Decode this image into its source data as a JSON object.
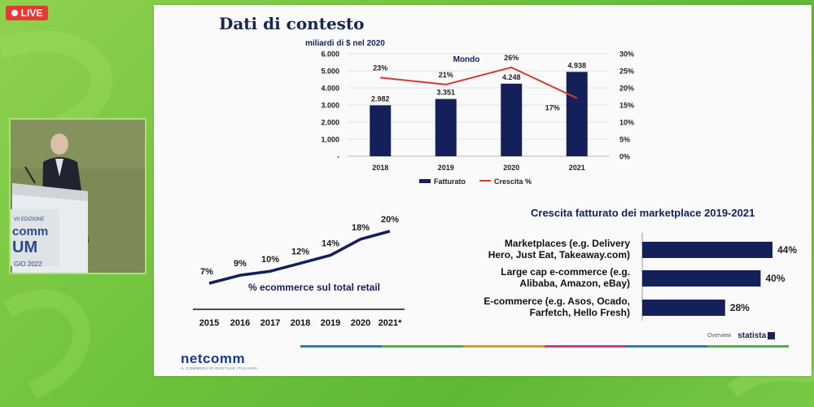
{
  "live": {
    "label": "LIVE"
  },
  "stage_sign": {
    "lines": [
      "VII EDIZIONE",
      "comm",
      "UM",
      "GIO 2022"
    ]
  },
  "slide": {
    "title": "Dati di contesto",
    "source_overview": "Overview",
    "source_brand": "statista",
    "logo_name": "netcomm",
    "logo_sub": "IL COMMERCIO DIGITALE ITALIANO"
  },
  "colors": {
    "navy": "#14205a",
    "red": "#d33c2f",
    "slide_bg": "#fafafa",
    "green_bg": "#6cc13a"
  },
  "chart_data": [
    {
      "type": "bar",
      "title": "Mondo",
      "unit_label": "miliardi di $ nel 2020",
      "categories": [
        "2018",
        "2019",
        "2020",
        "2021"
      ],
      "series": [
        {
          "name": "Fatturato",
          "type": "bar",
          "axis": "left",
          "values": [
            2982,
            3351,
            4248,
            4938
          ],
          "labels": [
            "2.982",
            "3.351",
            "4.248",
            "4.938"
          ]
        },
        {
          "name": "Crescita %",
          "type": "line",
          "axis": "right",
          "values": [
            23,
            21,
            26,
            17
          ],
          "labels": [
            "23%",
            "21%",
            "26%",
            "17%"
          ]
        }
      ],
      "y_left": {
        "min": 0,
        "max": 6000,
        "ticks": [
          "-",
          "1.000",
          "2.000",
          "3.000",
          "4.000",
          "5.000",
          "6.000"
        ]
      },
      "y_right": {
        "min": 0,
        "max": 30,
        "ticks": [
          "0%",
          "5%",
          "10%",
          "15%",
          "20%",
          "25%",
          "30%"
        ]
      },
      "grid": true,
      "legend": "bottom"
    },
    {
      "type": "line",
      "title": "% ecommerce sul total retail",
      "x": [
        "2015",
        "2016",
        "2017",
        "2018",
        "2019",
        "2020",
        "2021*"
      ],
      "values": [
        7,
        9,
        10,
        12,
        14,
        18,
        20
      ],
      "labels": [
        "7%",
        "9%",
        "10%",
        "12%",
        "14%",
        "18%",
        "20%"
      ]
    },
    {
      "type": "bar",
      "orientation": "horizontal",
      "title": "Crescita fatturato dei marketplace 2019-2021",
      "categories": [
        [
          "Marketplaces (e.g. Delivery",
          "Hero, Just Eat, Takeaway.com)"
        ],
        [
          "Large cap e-commerce (e.g.",
          "Alibaba, Amazon, eBay)"
        ],
        [
          "E-commerce (e.g. Asos, Ocado,",
          "Farfetch, Hello Fresh)"
        ]
      ],
      "values": [
        44,
        40,
        28
      ],
      "labels": [
        "44%",
        "40%",
        "28%"
      ]
    }
  ]
}
